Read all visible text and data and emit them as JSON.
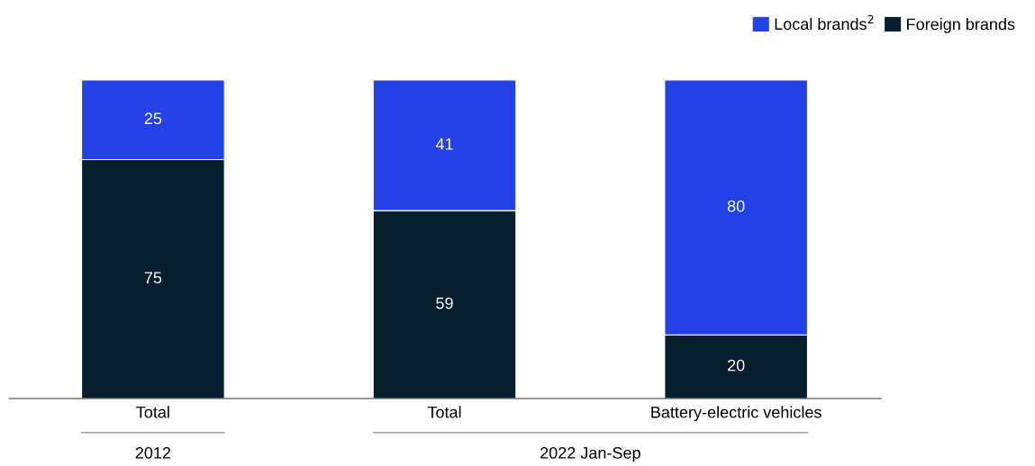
{
  "chart_data": {
    "type": "bar",
    "stacked": true,
    "categories": [
      "Total",
      "Total",
      "Battery-electric vehicles"
    ],
    "series": [
      {
        "name": "Foreign brands",
        "color": "#061e2d",
        "values": [
          75,
          59,
          20
        ]
      },
      {
        "name": "Local brands$^{2}$",
        "color": "#2241e6",
        "values": [
          25,
          41,
          80
        ]
      }
    ],
    "data_labels": true,
    "legend": "top right",
    "grid": false,
    "annotations": [
      "2012",
      "2022 Jan-Sep"
    ]
  }
}
